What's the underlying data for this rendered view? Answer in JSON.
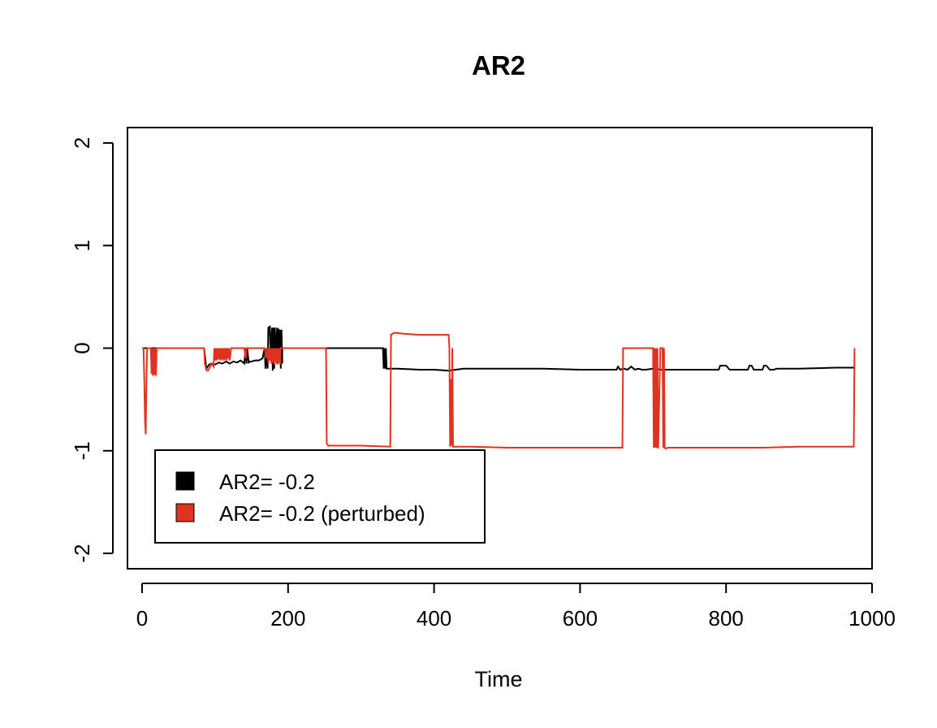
{
  "chart_data": {
    "type": "line",
    "title": "AR2",
    "xlabel": "Time",
    "ylabel": "",
    "xlim": [
      -20,
      1000
    ],
    "ylim": [
      -2.15,
      2.15
    ],
    "xticks": [
      0,
      200,
      400,
      600,
      800,
      1000
    ],
    "yticks": [
      -2,
      -1,
      0,
      1,
      2
    ],
    "xtick_labels": [
      "0",
      "200",
      "400",
      "600",
      "800",
      "1000"
    ],
    "ytick_labels": [
      "-2",
      "-1",
      "0",
      "1",
      "2"
    ],
    "grid": false,
    "legend": {
      "position": "bottom-left",
      "entries": [
        "AR2= -0.2",
        "AR2= -0.2 (perturbed)"
      ]
    },
    "series": [
      {
        "name": "AR2= -0.2",
        "color": "#000000",
        "x": [
          0,
          85,
          88,
          92,
          95,
          100,
          105,
          110,
          115,
          120,
          125,
          130,
          135,
          140,
          142,
          143,
          144,
          146,
          148,
          150,
          155,
          160,
          165,
          168,
          169,
          170,
          171,
          172,
          173,
          175,
          176,
          178,
          179,
          180,
          181,
          182,
          183,
          185,
          186,
          187,
          188,
          189,
          190,
          191,
          192,
          192,
          200,
          250,
          330,
          331,
          332,
          333,
          334,
          335,
          336,
          350,
          380,
          400,
          420,
          440,
          460,
          480,
          500,
          550,
          600,
          650,
          652,
          655,
          660,
          665,
          670,
          675,
          680,
          685,
          690,
          700,
          710,
          750,
          790,
          792,
          800,
          805,
          810,
          820,
          830,
          832,
          835,
          838,
          840,
          845,
          850,
          852,
          855,
          860,
          865,
          870,
          880,
          900,
          950,
          976
        ],
        "y": [
          0,
          0,
          -0.2,
          -0.16,
          -0.15,
          -0.16,
          -0.14,
          -0.15,
          -0.13,
          -0.15,
          -0.13,
          -0.14,
          -0.12,
          -0.15,
          0,
          -0.15,
          0,
          -0.14,
          -0.13,
          -0.13,
          -0.12,
          -0.12,
          -0.1,
          0,
          -0.2,
          -0.15,
          0,
          -0.2,
          0.2,
          0.21,
          -0.1,
          0.2,
          -0.22,
          0.2,
          -0.2,
          0.2,
          -0.1,
          0.2,
          -0.15,
          0.19,
          0,
          0.18,
          -0.2,
          0.18,
          -0.15,
          0,
          0,
          0,
          0,
          -0.2,
          0,
          -0.2,
          0,
          -0.2,
          -0.2,
          -0.2,
          -0.21,
          -0.21,
          -0.22,
          -0.2,
          -0.2,
          -0.2,
          -0.2,
          -0.2,
          -0.21,
          -0.21,
          -0.18,
          -0.21,
          -0.2,
          -0.21,
          -0.18,
          -0.21,
          -0.2,
          -0.21,
          -0.21,
          -0.2,
          -0.21,
          -0.21,
          -0.21,
          -0.17,
          -0.17,
          -0.21,
          -0.21,
          -0.21,
          -0.21,
          -0.17,
          -0.17,
          -0.21,
          -0.21,
          -0.21,
          -0.21,
          -0.17,
          -0.17,
          -0.21,
          -0.21,
          -0.2,
          -0.2,
          -0.2,
          -0.19,
          -0.19
        ]
      },
      {
        "name": "AR2= -0.2 (perturbed)",
        "color": "#e0331f",
        "x": [
          0,
          2,
          3,
          4,
          5,
          6,
          7,
          8,
          10,
          12,
          13,
          14,
          15,
          16,
          17,
          18,
          19,
          20,
          22,
          85,
          86,
          88,
          90,
          92,
          95,
          98,
          99,
          100,
          101,
          102,
          103,
          104,
          105,
          106,
          107,
          108,
          109,
          110,
          111,
          112,
          113,
          114,
          115,
          116,
          117,
          118,
          119,
          120,
          122,
          125,
          130,
          135,
          140,
          142,
          143,
          150,
          160,
          168,
          170,
          172,
          173,
          174,
          175,
          176,
          177,
          178,
          179,
          180,
          181,
          182,
          183,
          184,
          185,
          186,
          187,
          188,
          189,
          190,
          195,
          200,
          252,
          253,
          255,
          260,
          270,
          300,
          340,
          341,
          343,
          345,
          360,
          380,
          400,
          420,
          421,
          422,
          423,
          424,
          425,
          426,
          430,
          450,
          500,
          550,
          600,
          650,
          658,
          659,
          660,
          670,
          690,
          700,
          701,
          702,
          703,
          704,
          705,
          706,
          707,
          710,
          713,
          714,
          715,
          716,
          717,
          720,
          750,
          800,
          850,
          900,
          950,
          975,
          976
        ],
        "y": [
          0,
          0,
          -0.3,
          -0.7,
          -0.84,
          -0.3,
          0,
          0,
          0,
          0,
          -0.25,
          0,
          -0.27,
          0,
          -0.26,
          0,
          -0.27,
          0,
          0,
          0,
          -0.15,
          -0.21,
          -0.22,
          -0.2,
          -0.15,
          -0.18,
          0,
          -0.12,
          0,
          -0.12,
          0,
          -0.11,
          0,
          -0.11,
          0,
          -0.12,
          0,
          -0.11,
          0,
          -0.12,
          0,
          -0.11,
          0,
          -0.12,
          0,
          -0.1,
          0,
          -0.12,
          0,
          0,
          0,
          0,
          0,
          -0.1,
          0,
          0,
          0,
          0,
          -0.1,
          0,
          -0.15,
          0,
          -0.12,
          0,
          -0.15,
          0,
          -0.14,
          0,
          -0.16,
          0,
          -0.14,
          0,
          -0.16,
          0,
          -0.13,
          0,
          -0.16,
          0,
          0,
          0,
          0,
          -0.93,
          -0.95,
          -0.95,
          -0.95,
          -0.95,
          -0.96,
          0.13,
          0.14,
          0.15,
          0.14,
          0.13,
          0.13,
          0.13,
          0,
          -0.96,
          -0.3,
          -0.95,
          0,
          -0.96,
          -0.96,
          -0.96,
          -0.97,
          -0.97,
          -0.97,
          -0.97,
          -0.97,
          0,
          0,
          0,
          0,
          0,
          -0.97,
          0,
          -0.97,
          0,
          -0.97,
          0,
          -0.98,
          0,
          0,
          -0.97,
          0,
          -0.97,
          -0.98,
          -0.97,
          -0.97,
          -0.97,
          -0.97,
          -0.96,
          -0.96,
          -0.96,
          0
        ]
      }
    ]
  }
}
